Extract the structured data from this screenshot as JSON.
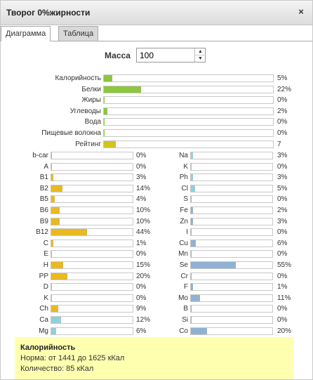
{
  "window": {
    "title": "Творог 0%жирности",
    "close_label": "×"
  },
  "tabs": [
    {
      "label": "Диаграмма",
      "active": true
    },
    {
      "label": "Таблица",
      "active": false
    }
  ],
  "mass": {
    "label": "Масса",
    "value": "100"
  },
  "colors": {
    "green": "#8dc63f",
    "yellow": "#e8b923",
    "lightblue": "#95cedb",
    "steelblue": "#8fb2d4",
    "rating": "#d2c31f"
  },
  "main_bars": [
    {
      "label": "Калорийность",
      "percent": 5,
      "value": "5%"
    },
    {
      "label": "Белки",
      "percent": 22,
      "value": "22%"
    },
    {
      "label": "Жиры",
      "percent": 0,
      "value": "0%"
    },
    {
      "label": "Углеводы",
      "percent": 2,
      "value": "2%"
    },
    {
      "label": "Вода",
      "percent": 0,
      "value": "0%"
    },
    {
      "label": "Пищевые волокна",
      "percent": 0,
      "value": "0%"
    },
    {
      "label": "Рейтинг",
      "percent": 7,
      "value": "7"
    }
  ],
  "vitamins": [
    {
      "label": "b-car",
      "percent": 0,
      "value": "0%",
      "color": "yellow"
    },
    {
      "label": "A",
      "percent": 0,
      "value": "0%",
      "color": "yellow"
    },
    {
      "label": "B1",
      "percent": 3,
      "value": "3%",
      "color": "yellow"
    },
    {
      "label": "B2",
      "percent": 14,
      "value": "14%",
      "color": "yellow"
    },
    {
      "label": "B5",
      "percent": 4,
      "value": "4%",
      "color": "yellow"
    },
    {
      "label": "B6",
      "percent": 10,
      "value": "10%",
      "color": "yellow"
    },
    {
      "label": "B9",
      "percent": 10,
      "value": "10%",
      "color": "yellow"
    },
    {
      "label": "B12",
      "percent": 44,
      "value": "44%",
      "color": "yellow"
    },
    {
      "label": "C",
      "percent": 1,
      "value": "1%",
      "color": "yellow"
    },
    {
      "label": "E",
      "percent": 0,
      "value": "0%",
      "color": "yellow"
    },
    {
      "label": "H",
      "percent": 15,
      "value": "15%",
      "color": "yellow"
    },
    {
      "label": "PP",
      "percent": 20,
      "value": "20%",
      "color": "yellow"
    },
    {
      "label": "D",
      "percent": 0,
      "value": "0%",
      "color": "yellow"
    },
    {
      "label": "K",
      "percent": 0,
      "value": "0%",
      "color": "yellow"
    },
    {
      "label": "Ch",
      "percent": 9,
      "value": "9%",
      "color": "yellow"
    },
    {
      "label": "Ca",
      "percent": 12,
      "value": "12%",
      "color": "lightblue"
    },
    {
      "label": "Mg",
      "percent": 6,
      "value": "6%",
      "color": "lightblue"
    }
  ],
  "minerals": [
    {
      "label": "Na",
      "percent": 3,
      "value": "3%",
      "color": "lightblue"
    },
    {
      "label": "K",
      "percent": 0,
      "value": "0%",
      "color": "lightblue"
    },
    {
      "label": "Ph",
      "percent": 3,
      "value": "3%",
      "color": "lightblue"
    },
    {
      "label": "Cl",
      "percent": 5,
      "value": "5%",
      "color": "lightblue"
    },
    {
      "label": "S",
      "percent": 0,
      "value": "0%",
      "color": "steelblue"
    },
    {
      "label": "Fe",
      "percent": 2,
      "value": "2%",
      "color": "steelblue"
    },
    {
      "label": "Zn",
      "percent": 3,
      "value": "3%",
      "color": "steelblue"
    },
    {
      "label": "I",
      "percent": 0,
      "value": "0%",
      "color": "steelblue"
    },
    {
      "label": "Cu",
      "percent": 6,
      "value": "6%",
      "color": "steelblue"
    },
    {
      "label": "Mn",
      "percent": 0,
      "value": "0%",
      "color": "steelblue"
    },
    {
      "label": "Se",
      "percent": 55,
      "value": "55%",
      "color": "steelblue"
    },
    {
      "label": "Cr",
      "percent": 0,
      "value": "0%",
      "color": "steelblue"
    },
    {
      "label": "F",
      "percent": 1,
      "value": "1%",
      "color": "steelblue"
    },
    {
      "label": "Mo",
      "percent": 11,
      "value": "11%",
      "color": "steelblue"
    },
    {
      "label": "B",
      "percent": 0,
      "value": "0%",
      "color": "steelblue"
    },
    {
      "label": "Si",
      "percent": 0,
      "value": "0%",
      "color": "steelblue"
    },
    {
      "label": "Co",
      "percent": 20,
      "value": "20%",
      "color": "steelblue"
    }
  ],
  "info": {
    "title": "Калорийность",
    "norm": "Норма: от 1441 до 1625 кКал",
    "amount": "Количество: 85 кКал"
  }
}
